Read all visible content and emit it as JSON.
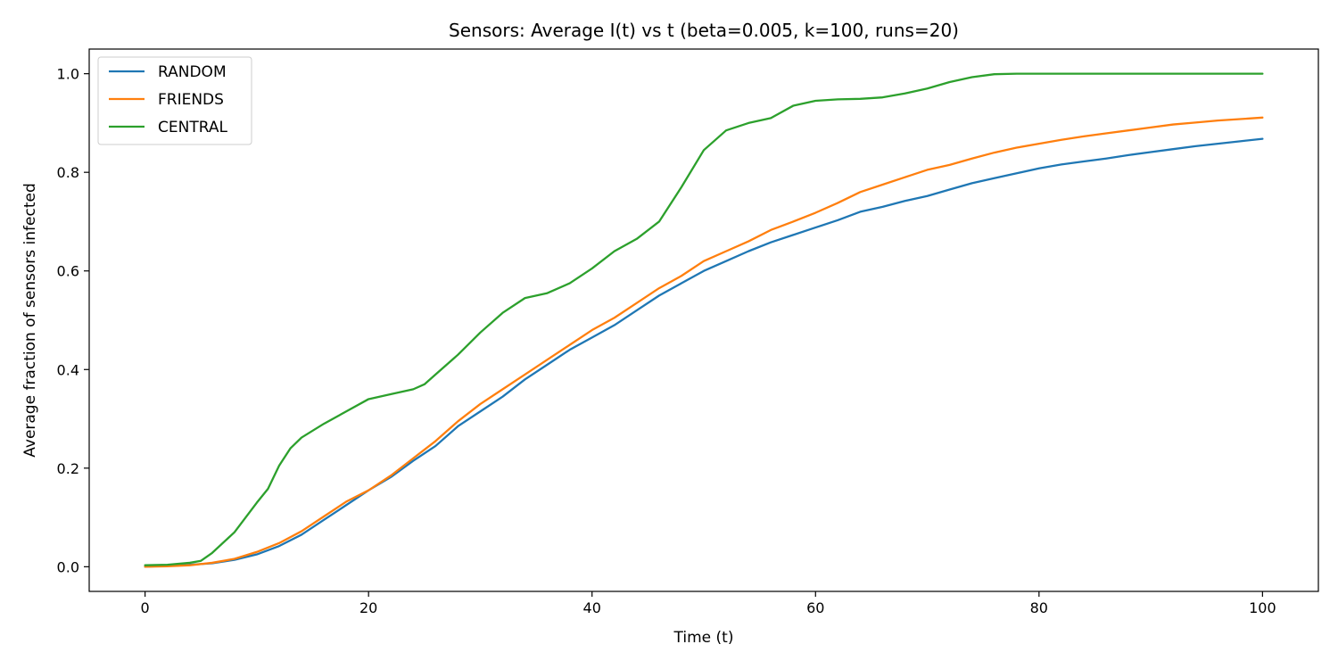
{
  "chart_data": {
    "type": "line",
    "title": "Sensors: Average I(t) vs t (beta=0.005, k=100, runs=20)",
    "xlabel": "Time (t)",
    "ylabel": "Average fraction of sensors infected",
    "xlim": [
      -5,
      105
    ],
    "ylim": [
      -0.05,
      1.05
    ],
    "xticks": [
      0,
      20,
      40,
      60,
      80,
      100
    ],
    "yticks": [
      0.0,
      0.2,
      0.4,
      0.6,
      0.8,
      1.0
    ],
    "xtick_labels": [
      "0",
      "20",
      "40",
      "60",
      "80",
      "100"
    ],
    "ytick_labels": [
      "0.0",
      "0.2",
      "0.4",
      "0.6",
      "0.8",
      "1.0"
    ],
    "grid": false,
    "legend_position": "top-left",
    "series": [
      {
        "name": "RANDOM",
        "color": "#1f77b4",
        "points": [
          [
            0,
            0.0
          ],
          [
            2,
            0.002
          ],
          [
            4,
            0.004
          ],
          [
            6,
            0.007
          ],
          [
            8,
            0.014
          ],
          [
            10,
            0.025
          ],
          [
            12,
            0.042
          ],
          [
            14,
            0.065
          ],
          [
            16,
            0.095
          ],
          [
            18,
            0.125
          ],
          [
            20,
            0.155
          ],
          [
            22,
            0.182
          ],
          [
            24,
            0.215
          ],
          [
            26,
            0.245
          ],
          [
            28,
            0.285
          ],
          [
            30,
            0.315
          ],
          [
            32,
            0.345
          ],
          [
            34,
            0.38
          ],
          [
            36,
            0.41
          ],
          [
            38,
            0.44
          ],
          [
            40,
            0.465
          ],
          [
            42,
            0.49
          ],
          [
            44,
            0.52
          ],
          [
            46,
            0.55
          ],
          [
            48,
            0.575
          ],
          [
            50,
            0.6
          ],
          [
            52,
            0.62
          ],
          [
            54,
            0.64
          ],
          [
            56,
            0.658
          ],
          [
            58,
            0.673
          ],
          [
            60,
            0.688
          ],
          [
            62,
            0.703
          ],
          [
            64,
            0.72
          ],
          [
            66,
            0.73
          ],
          [
            68,
            0.742
          ],
          [
            70,
            0.752
          ],
          [
            72,
            0.765
          ],
          [
            74,
            0.778
          ],
          [
            76,
            0.788
          ],
          [
            78,
            0.798
          ],
          [
            80,
            0.808
          ],
          [
            82,
            0.816
          ],
          [
            84,
            0.822
          ],
          [
            86,
            0.828
          ],
          [
            88,
            0.835
          ],
          [
            90,
            0.841
          ],
          [
            92,
            0.847
          ],
          [
            94,
            0.853
          ],
          [
            96,
            0.858
          ],
          [
            98,
            0.863
          ],
          [
            100,
            0.868
          ]
        ]
      },
      {
        "name": "FRIENDS",
        "color": "#ff7f0e",
        "points": [
          [
            0,
            0.0
          ],
          [
            2,
            0.001
          ],
          [
            4,
            0.003
          ],
          [
            6,
            0.008
          ],
          [
            8,
            0.016
          ],
          [
            10,
            0.03
          ],
          [
            12,
            0.048
          ],
          [
            14,
            0.072
          ],
          [
            16,
            0.102
          ],
          [
            18,
            0.132
          ],
          [
            20,
            0.155
          ],
          [
            22,
            0.185
          ],
          [
            24,
            0.22
          ],
          [
            26,
            0.255
          ],
          [
            28,
            0.295
          ],
          [
            30,
            0.33
          ],
          [
            32,
            0.36
          ],
          [
            34,
            0.39
          ],
          [
            36,
            0.42
          ],
          [
            38,
            0.45
          ],
          [
            40,
            0.48
          ],
          [
            42,
            0.505
          ],
          [
            44,
            0.535
          ],
          [
            46,
            0.565
          ],
          [
            48,
            0.59
          ],
          [
            50,
            0.62
          ],
          [
            52,
            0.64
          ],
          [
            54,
            0.66
          ],
          [
            56,
            0.683
          ],
          [
            58,
            0.7
          ],
          [
            60,
            0.718
          ],
          [
            62,
            0.738
          ],
          [
            64,
            0.76
          ],
          [
            66,
            0.775
          ],
          [
            68,
            0.79
          ],
          [
            70,
            0.805
          ],
          [
            72,
            0.815
          ],
          [
            74,
            0.828
          ],
          [
            76,
            0.84
          ],
          [
            78,
            0.85
          ],
          [
            80,
            0.858
          ],
          [
            82,
            0.866
          ],
          [
            84,
            0.873
          ],
          [
            86,
            0.879
          ],
          [
            88,
            0.885
          ],
          [
            90,
            0.891
          ],
          [
            92,
            0.897
          ],
          [
            94,
            0.901
          ],
          [
            96,
            0.905
          ],
          [
            98,
            0.908
          ],
          [
            100,
            0.911
          ]
        ]
      },
      {
        "name": "CENTRAL",
        "color": "#2ca02c",
        "points": [
          [
            0,
            0.003
          ],
          [
            2,
            0.004
          ],
          [
            4,
            0.008
          ],
          [
            5,
            0.012
          ],
          [
            6,
            0.028
          ],
          [
            8,
            0.07
          ],
          [
            10,
            0.13
          ],
          [
            11,
            0.158
          ],
          [
            12,
            0.205
          ],
          [
            13,
            0.24
          ],
          [
            14,
            0.262
          ],
          [
            16,
            0.29
          ],
          [
            18,
            0.315
          ],
          [
            20,
            0.34
          ],
          [
            22,
            0.35
          ],
          [
            24,
            0.36
          ],
          [
            25,
            0.37
          ],
          [
            26,
            0.39
          ],
          [
            28,
            0.43
          ],
          [
            30,
            0.475
          ],
          [
            32,
            0.515
          ],
          [
            34,
            0.545
          ],
          [
            36,
            0.555
          ],
          [
            38,
            0.575
          ],
          [
            40,
            0.605
          ],
          [
            42,
            0.64
          ],
          [
            44,
            0.665
          ],
          [
            46,
            0.7
          ],
          [
            48,
            0.77
          ],
          [
            50,
            0.845
          ],
          [
            52,
            0.885
          ],
          [
            54,
            0.9
          ],
          [
            56,
            0.91
          ],
          [
            58,
            0.935
          ],
          [
            60,
            0.945
          ],
          [
            62,
            0.948
          ],
          [
            64,
            0.949
          ],
          [
            66,
            0.952
          ],
          [
            68,
            0.96
          ],
          [
            70,
            0.97
          ],
          [
            72,
            0.983
          ],
          [
            74,
            0.993
          ],
          [
            76,
            0.999
          ],
          [
            78,
            1.0
          ],
          [
            80,
            1.0
          ],
          [
            90,
            1.0
          ],
          [
            100,
            1.0
          ]
        ]
      }
    ]
  }
}
